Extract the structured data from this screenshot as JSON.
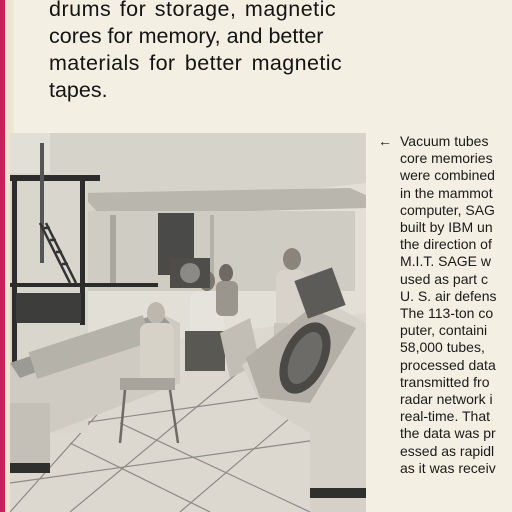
{
  "body_text": {
    "lines": [
      "drums for storage, magnetic",
      "cores for memory, and better",
      "materials for better magnetic",
      "tapes."
    ]
  },
  "caption": {
    "arrow": "←",
    "lines": [
      "Vacuum tubes",
      "core memories",
      "were combined",
      "in the mammot",
      "computer, SAG",
      "built by IBM un",
      "the direction of",
      "M.I.T. SAGE w",
      "used as part c",
      "U. S. air defens",
      "The 113-ton co",
      "puter, containi",
      "58,000 tubes,",
      "processed data",
      "transmitted fro",
      "radar network i",
      "real-time. That",
      "the data was pr",
      "essed as rapidl",
      "as it was receiv"
    ]
  },
  "colors": {
    "page": "#f3efe2",
    "accent_edge": "#c81e5a",
    "text": "#141414"
  }
}
